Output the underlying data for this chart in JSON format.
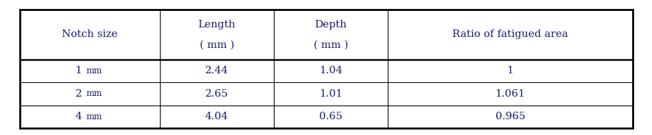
{
  "col_headers_line1": [
    "Notch size",
    "Length",
    "Depth",
    "Ratio of fatigued area"
  ],
  "col_headers_line2": [
    "",
    "( mm )",
    "( mm )",
    ""
  ],
  "rows": [
    [
      "1",
      "mm",
      "2.44",
      "1.04",
      "1"
    ],
    [
      "2",
      "mm",
      "2.65",
      "1.01",
      "1.061"
    ],
    [
      "4",
      "mm",
      "4.04",
      "0.65",
      "0.965"
    ]
  ],
  "background_color": "#ffffff",
  "border_color": "#000000",
  "text_color": "#1a1a6e",
  "font_size": 11,
  "header_font_size": 11
}
